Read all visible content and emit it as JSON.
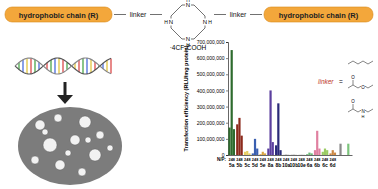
{
  "chart_data": {
    "type": "bar",
    "y_label": "Transfection efficiency (RLU/mg protein)",
    "x_label": "N/P:",
    "categories": [
      "5a",
      "5b",
      "5c",
      "5d",
      "5e",
      "8a",
      "8b",
      "10a",
      "10b",
      "10e",
      "6a",
      "6b",
      "6c",
      "6d",
      null,
      null
    ],
    "series": [
      {
        "name": "2",
        "colors": [
          "#2e6b2e",
          "#8c2a1c",
          "#e6cf62",
          "#3a5fb0",
          "#d9a441",
          "#5b3f9e",
          "#2a2a78",
          "#c8c8c8",
          "#c8c8c8",
          "#c8c8c8",
          "#6bbb78",
          "#e080a0",
          "#9acb63",
          "#cc8844",
          "#8a8a8a",
          "#7cc47c"
        ],
        "values": [
          170000000,
          190000000,
          20000000,
          10000000,
          5000000,
          40000000,
          60000000,
          2000000,
          3000000,
          2000000,
          5000000,
          30000000,
          20000000,
          10000000,
          null,
          null
        ]
      },
      {
        "name": "4",
        "colors": [
          "#2e6b2e",
          "#8c2a1c",
          "#e6cf62",
          "#3a5fb0",
          "#d9a441",
          "#5b3f9e",
          "#2a2a78",
          "#c8c8c8",
          "#c8c8c8",
          "#c8c8c8",
          "#6bbb78",
          "#e080a0",
          "#9acb63",
          "#cc8844",
          "#8a8a8a",
          "#7cc47c"
        ],
        "values": [
          650000000,
          230000000,
          25000000,
          100000000,
          20000000,
          400000000,
          320000000,
          5000000,
          4000000,
          3000000,
          15000000,
          150000000,
          40000000,
          30000000,
          70000000,
          70000000
        ]
      },
      {
        "name": "8",
        "colors": [
          "#2e6b2e",
          "#8c2a1c",
          "#e6cf62",
          "#3a5fb0",
          "#d9a441",
          "#5b3f9e",
          "#2a2a78",
          "#c8c8c8",
          "#c8c8c8",
          "#c8c8c8",
          "#6bbb78",
          "#e080a0",
          "#9acb63",
          "#cc8844",
          "#8a8a8a",
          "#7cc47c"
        ],
        "values": [
          160000000,
          120000000,
          10000000,
          40000000,
          10000000,
          80000000,
          30000000,
          3000000,
          2000000,
          2000000,
          10000000,
          40000000,
          30000000,
          15000000,
          null,
          null
        ]
      }
    ],
    "ylim": [
      0,
      700000000
    ],
    "yticks": [
      0,
      {
        "value": 100000000,
        "label": "100,000,000"
      },
      {
        "value": 200000000,
        "label": "200,000,000"
      },
      {
        "value": 300000000,
        "label": "300,000,000"
      },
      {
        "value": 400000000,
        "label": "400,000,000"
      },
      {
        "value": 500000000,
        "label": "500,000,000"
      },
      {
        "value": 600000000,
        "label": "600,000,000"
      },
      {
        "value": 700000000,
        "label": "700,000,000"
      }
    ],
    "grid": false
  },
  "diagram": {
    "chain_label": "hydrophobic chain (R)",
    "linker_label": "linker",
    "ring_atoms": [
      "N",
      "H"
    ],
    "salt": "·4CF₃COOH",
    "legend_label": "linker",
    "legend_equals": "=",
    "legend_atoms": [
      "O",
      "N",
      "H"
    ]
  }
}
